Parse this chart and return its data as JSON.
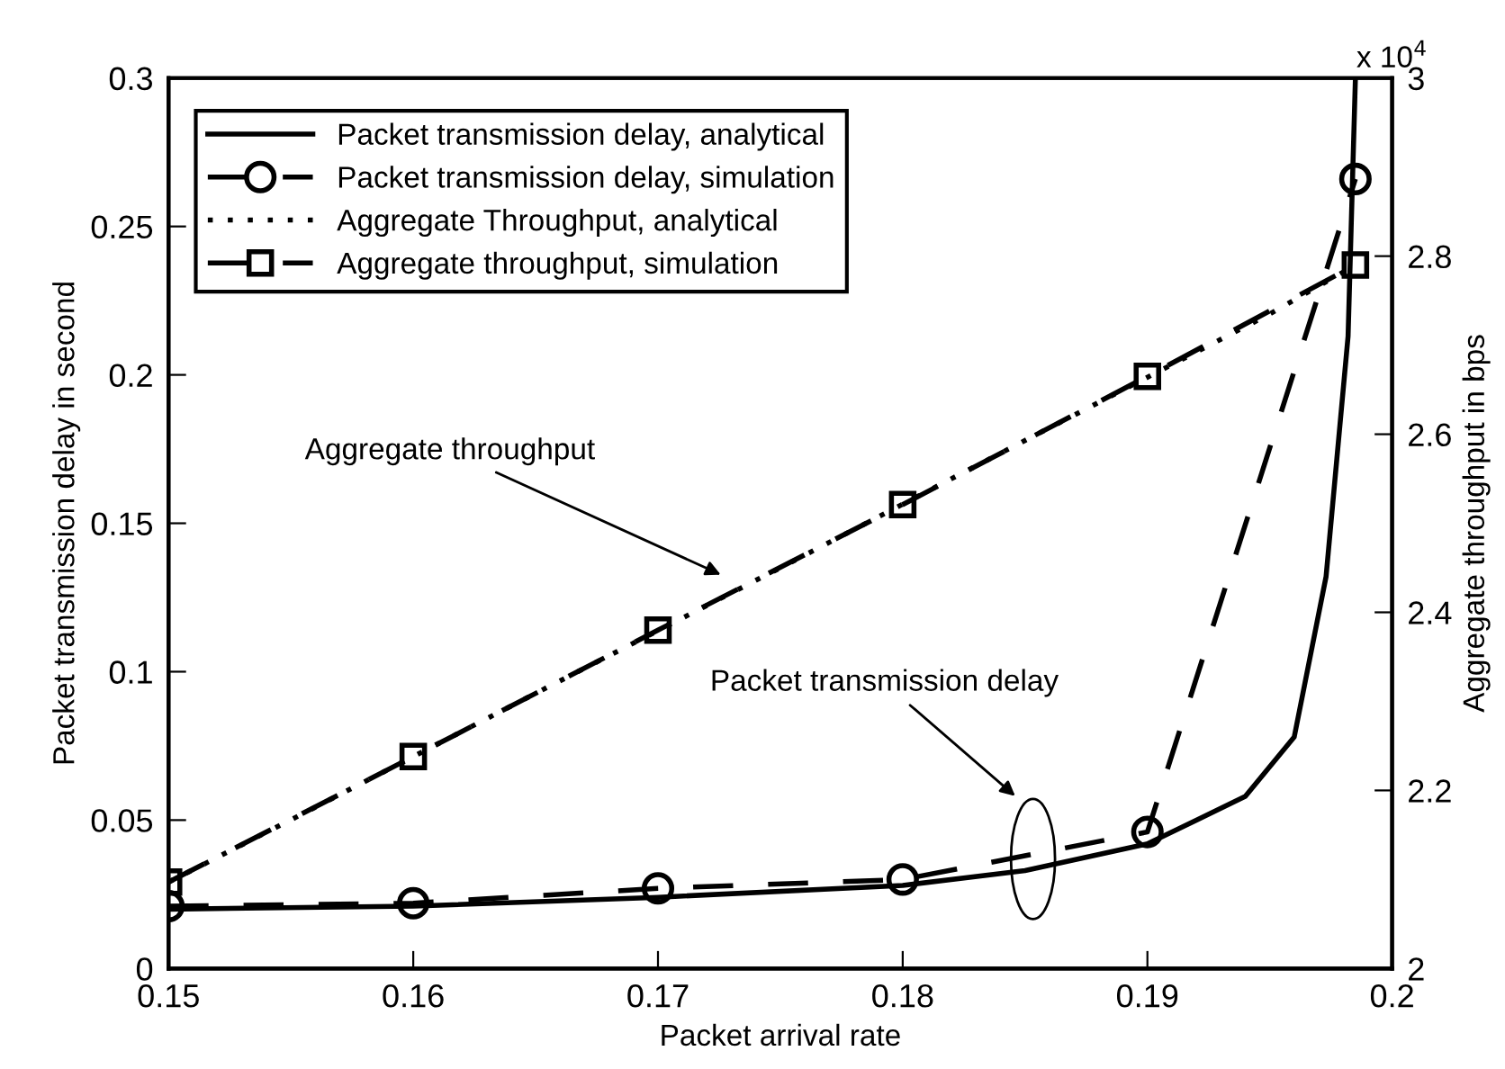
{
  "chart_data": {
    "type": "line",
    "xlabel": "Packet arrival rate",
    "ylabel": "Packet transmission delay in second",
    "y2label": "Aggregate throughput in bps",
    "xlim": [
      0.15,
      0.2
    ],
    "xticks": [
      0.15,
      0.16,
      0.17,
      0.18,
      0.19,
      0.2
    ],
    "ylim": [
      0,
      0.3
    ],
    "yticks": [
      0,
      0.05,
      0.1,
      0.15,
      0.2,
      0.25,
      0.3
    ],
    "y2lim": [
      2,
      3
    ],
    "y2ticks": [
      2,
      2.2,
      2.4,
      2.6,
      2.8,
      3
    ],
    "legend": "top left",
    "grid": false,
    "series": [
      {
        "name": "Packet transmission delay, analytical",
        "color": "#000000",
        "line_style": "solid",
        "marker": "none",
        "x": [
          0.15,
          0.16,
          0.17,
          0.18,
          0.185,
          0.19,
          0.192,
          0.194,
          0.196,
          0.1973,
          0.1982,
          0.1985
        ],
        "values": [
          0.02,
          0.021,
          0.024,
          0.028,
          0.033,
          0.042,
          0.05,
          0.058,
          0.078,
          0.132,
          0.213,
          0.3
        ]
      },
      {
        "name": "Packet transmission delay, simulation",
        "color": "#000000",
        "line_style": "dashed",
        "marker": "circle",
        "x": [
          0.15,
          0.16,
          0.17,
          0.18,
          0.19,
          0.1985
        ],
        "values": [
          0.021,
          0.022,
          0.027,
          0.03,
          0.046,
          0.266
        ]
      },
      {
        "name": "Aggregate Throughput, analytical",
        "color": "#000000",
        "line_style": "dotted",
        "marker": "none",
        "axis": "y2",
        "x": [
          0.15,
          0.155,
          0.165,
          0.175,
          0.185,
          0.195,
          0.1985
        ],
        "values": [
          2.097,
          2.167,
          2.309,
          2.45,
          2.593,
          2.735,
          2.79
        ]
      },
      {
        "name": "Aggregate throughput, simulation",
        "color": "#000000",
        "line_style": "dashed",
        "marker": "square",
        "axis": "y2",
        "x": [
          0.15,
          0.16,
          0.17,
          0.18,
          0.19,
          0.1985
        ],
        "values": [
          2.097,
          2.238,
          2.38,
          2.521,
          2.665,
          2.79
        ]
      }
    ],
    "annotations": [
      "Aggregate throughput",
      "Packet transmission delay",
      "x 10$^{4}$"
    ]
  }
}
